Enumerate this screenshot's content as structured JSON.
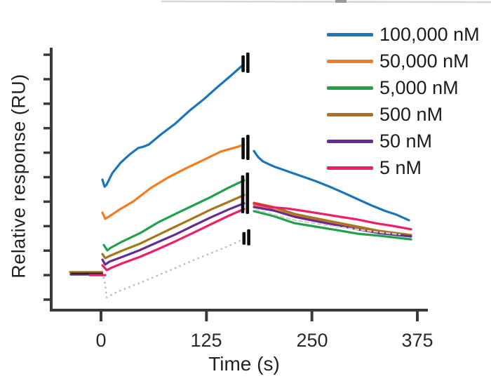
{
  "legend": {
    "entries": [
      {
        "label": "100,000 nM",
        "color": "#1b75bb"
      },
      {
        "label": "50,000 nM",
        "color": "#f47c20"
      },
      {
        "label": "5,000 nM",
        "color": "#21a14b"
      },
      {
        "label": "500 nM",
        "color": "#a5761c"
      },
      {
        "label": "50 nM",
        "color": "#662d91"
      },
      {
        "label": "5 nM",
        "color": "#ed1e6b"
      }
    ]
  },
  "chart_data": {
    "type": "line",
    "title": "",
    "xlabel": "Time (s)",
    "ylabel": "Relative response (RU)",
    "x_ticks": [
      0,
      125,
      250,
      375
    ],
    "x_tick_labels": [
      "0",
      "125",
      "250",
      "375"
    ],
    "y_ticks": [
      0,
      1,
      2,
      3,
      4,
      5,
      6,
      7,
      8,
      9,
      10
    ],
    "y_tick_labels": [],
    "y_ticks_unlabeled": true,
    "xlim": [
      -59,
      388
    ],
    "ylim": [
      -0.43,
      10.23
    ],
    "grid": false,
    "legend_position": "top-right",
    "axis_color": "#3a3a3a",
    "spike_color": "#0d0d0d",
    "series": [
      {
        "id": "ref",
        "name": "reference (dotted)",
        "color": "#b9b9b9",
        "width": 2.6,
        "dash": "0.1 7",
        "paths": [
          [
            [
              3.3,
              0.89
            ],
            [
              5.0,
              0.63
            ],
            [
              5.8,
              0.34
            ],
            [
              6.7,
              0.09
            ],
            [
              17.5,
              0.29
            ],
            [
              46.6,
              0.69
            ],
            [
              79.8,
              1.17
            ],
            [
              113.1,
              1.66
            ],
            [
              146.4,
              2.12
            ],
            [
              167.1,
              2.44
            ]
          ]
        ]
      },
      {
        "id": "c100000",
        "name": "100,000 nM",
        "color": "#1b75bb",
        "width": 3.2,
        "paths": [
          [
            [
              1.7,
              4.9
            ],
            [
              4.2,
              4.61
            ],
            [
              6.7,
              4.7
            ],
            [
              13.3,
              5.16
            ],
            [
              23.3,
              5.59
            ],
            [
              34.1,
              5.93
            ],
            [
              44.1,
              6.19
            ],
            [
              50.7,
              6.25
            ],
            [
              56.5,
              6.33
            ],
            [
              71.5,
              6.76
            ],
            [
              88.1,
              7.19
            ],
            [
              104.8,
              7.71
            ],
            [
              121.4,
              8.17
            ],
            [
              138.0,
              8.68
            ],
            [
              154.7,
              9.17
            ],
            [
              168.8,
              9.6
            ]
          ],
          [
            [
              181.3,
              6.07
            ],
            [
              186.3,
              5.82
            ],
            [
              192.1,
              5.64
            ],
            [
              204.5,
              5.44
            ],
            [
              221.2,
              5.24
            ],
            [
              237.8,
              5.04
            ],
            [
              254.4,
              4.84
            ],
            [
              271.1,
              4.61
            ],
            [
              287.7,
              4.36
            ],
            [
              304.3,
              4.1
            ],
            [
              321.0,
              3.84
            ],
            [
              337.6,
              3.61
            ],
            [
              350.1,
              3.47
            ],
            [
              365.0,
              3.24
            ]
          ]
        ]
      },
      {
        "id": "c50000",
        "name": "50,000 nM",
        "color": "#f47c20",
        "width": 3.2,
        "paths": [
          [
            [
              1.7,
              3.55
            ],
            [
              5.0,
              3.3
            ],
            [
              9.1,
              3.38
            ],
            [
              21.6,
              3.67
            ],
            [
              38.2,
              4.01
            ],
            [
              59.0,
              4.56
            ],
            [
              79.8,
              4.99
            ],
            [
              100.6,
              5.36
            ],
            [
              121.4,
              5.7
            ],
            [
              142.2,
              6.05
            ],
            [
              163.0,
              6.25
            ],
            [
              169.6,
              6.33
            ]
          ],
          [
            [
              181.3,
              3.87
            ],
            [
              229.5,
              3.44
            ],
            [
              279.4,
              3.09
            ],
            [
              329.3,
              2.78
            ],
            [
              367.5,
              2.61
            ]
          ]
        ]
      },
      {
        "id": "c5000",
        "name": "5,000 nM",
        "color": "#21a14b",
        "width": 3.2,
        "paths": [
          [
            [
              3.3,
              2.23
            ],
            [
              7.5,
              2.01
            ],
            [
              11.6,
              2.12
            ],
            [
              25.8,
              2.38
            ],
            [
              46.6,
              2.72
            ],
            [
              67.4,
              3.15
            ],
            [
              88.1,
              3.5
            ],
            [
              108.9,
              3.84
            ],
            [
              129.7,
              4.18
            ],
            [
              150.5,
              4.56
            ],
            [
              169.6,
              4.87
            ]
          ],
          [
            [
              181.3,
              3.61
            ],
            [
              204.5,
              3.41
            ],
            [
              229.5,
              3.12
            ],
            [
              254.4,
              2.98
            ],
            [
              279.4,
              2.84
            ],
            [
              304.3,
              2.69
            ],
            [
              329.3,
              2.61
            ],
            [
              367.5,
              2.46
            ]
          ]
        ]
      },
      {
        "id": "c500",
        "name": "500 nM",
        "color": "#a5761c",
        "width": 3.2,
        "paths": [
          [
            [
              -36.6,
              1.12
            ],
            [
              1.4,
              1.12
            ]
          ],
          [
            [
              1.7,
              1.86
            ],
            [
              5.0,
              1.69
            ],
            [
              10.0,
              1.78
            ],
            [
              25.8,
              2.01
            ],
            [
              46.6,
              2.29
            ],
            [
              67.4,
              2.64
            ],
            [
              88.1,
              2.98
            ],
            [
              108.9,
              3.32
            ],
            [
              129.7,
              3.67
            ],
            [
              150.5,
              3.98
            ],
            [
              169.6,
              4.27
            ]
          ],
          [
            [
              181.3,
              3.95
            ],
            [
              204.5,
              3.78
            ],
            [
              229.5,
              3.5
            ],
            [
              254.4,
              3.32
            ],
            [
              279.4,
              3.15
            ],
            [
              304.3,
              2.98
            ],
            [
              329.3,
              2.81
            ],
            [
              367.5,
              2.64
            ]
          ]
        ]
      },
      {
        "id": "c50",
        "name": "50 nM",
        "color": "#662d91",
        "width": 3.2,
        "paths": [
          [
            [
              -35.8,
              1.03
            ],
            [
              1.4,
              1.03
            ]
          ],
          [
            [
              1.7,
              1.63
            ],
            [
              5.0,
              1.43
            ],
            [
              10.0,
              1.55
            ],
            [
              25.8,
              1.75
            ],
            [
              46.6,
              2.03
            ],
            [
              67.4,
              2.35
            ],
            [
              88.1,
              2.66
            ],
            [
              108.9,
              3.01
            ],
            [
              129.7,
              3.35
            ],
            [
              150.5,
              3.67
            ],
            [
              169.6,
              3.93
            ]
          ],
          [
            [
              181.3,
              3.78
            ],
            [
              204.5,
              3.64
            ],
            [
              229.5,
              3.38
            ],
            [
              254.4,
              3.21
            ],
            [
              279.4,
              3.04
            ],
            [
              304.3,
              2.87
            ],
            [
              329.3,
              2.72
            ],
            [
              367.5,
              2.58
            ]
          ]
        ]
      },
      {
        "id": "base",
        "name": "baseline (overlapped traces)",
        "color": "#2f262b",
        "width": 2.4,
        "paths": [
          [
            [
              -34.9,
              1.07
            ],
            [
              1.4,
              1.07
            ]
          ]
        ]
      },
      {
        "id": "refdash",
        "name": "reference (dissociation, dashed)",
        "color": "#cfcfcf",
        "width": 2.2,
        "dash": "5 4",
        "paths": [
          [
            [
              183.8,
              3.67
            ],
            [
              229.5,
              3.24
            ],
            [
              279.4,
              2.98
            ],
            [
              329.3,
              2.75
            ],
            [
              354.3,
              2.66
            ]
          ]
        ]
      },
      {
        "id": "c5",
        "name": "5 nM",
        "color": "#ed1e6b",
        "width": 3.2,
        "paths": [
          [
            [
              -13.3,
              1.0
            ],
            [
              5.0,
              1.0
            ]
          ],
          [
            [
              1.7,
              1.4
            ],
            [
              6.7,
              1.2
            ],
            [
              11.6,
              1.29
            ],
            [
              25.8,
              1.49
            ],
            [
              46.6,
              1.75
            ],
            [
              67.4,
              2.06
            ],
            [
              88.1,
              2.38
            ],
            [
              108.9,
              2.72
            ],
            [
              129.7,
              3.07
            ],
            [
              150.5,
              3.41
            ],
            [
              169.6,
              3.7
            ]
          ],
          [
            [
              181.3,
              3.93
            ],
            [
              200.4,
              3.78
            ],
            [
              221.2,
              3.72
            ],
            [
              242.0,
              3.61
            ],
            [
              262.8,
              3.5
            ],
            [
              283.6,
              3.38
            ],
            [
              304.3,
              3.27
            ],
            [
              325.1,
              3.12
            ],
            [
              345.9,
              3.01
            ],
            [
              367.5,
              2.87
            ]
          ]
        ]
      }
    ],
    "spike_marks": [
      {
        "t": 171.5,
        "r_min": 9.26,
        "r_max": 10.09
      },
      {
        "t": 171.5,
        "r_min": 5.7,
        "r_max": 6.73
      },
      {
        "t": 171.0,
        "r_min": 3.5,
        "r_max": 5.19
      },
      {
        "t": 172.5,
        "r_min": 2.21,
        "r_max": 2.87
      }
    ]
  }
}
